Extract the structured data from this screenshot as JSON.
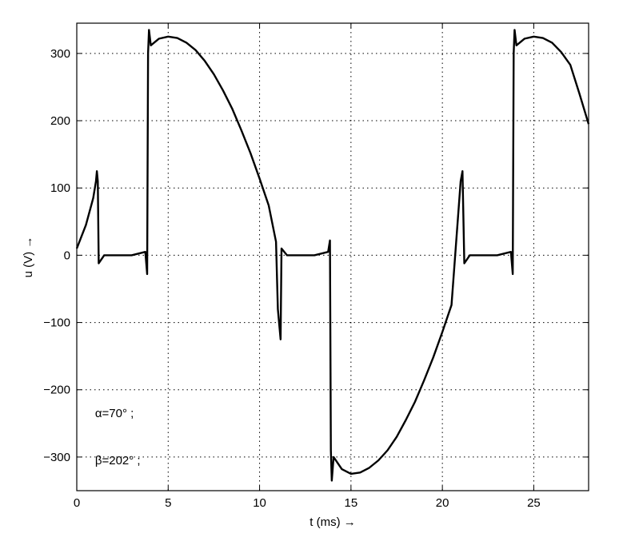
{
  "chart_data": {
    "type": "line",
    "xlabel": "t (ms) →",
    "ylabel": "u  (V) →",
    "xlim": [
      0,
      28
    ],
    "ylim": [
      -350,
      345
    ],
    "grid": true,
    "x_ticks": [
      0,
      5,
      10,
      15,
      20,
      25
    ],
    "y_ticks": [
      -300,
      -200,
      -100,
      0,
      100,
      200,
      300
    ],
    "x_tick_labels": [
      "0",
      "5",
      "10",
      "15",
      "20",
      "25"
    ],
    "y_tick_labels": [
      "−300",
      "−200",
      "−100",
      "0",
      "100",
      "200",
      "300"
    ],
    "annotations": [
      {
        "text": "α=70° ;",
        "x": 1.0,
        "y": -235
      },
      {
        "text": "β=202° ;",
        "x": 1.0,
        "y": -305
      }
    ],
    "series": [
      {
        "color": "#000000",
        "points": [
          [
            0,
            10
          ],
          [
            0.5,
            45
          ],
          [
            0.9,
            85
          ],
          [
            1.05,
            110
          ],
          [
            1.1,
            125
          ],
          [
            1.15,
            110
          ],
          [
            1.2,
            -12
          ],
          [
            1.5,
            0
          ],
          [
            3.0,
            0
          ],
          [
            3.75,
            5
          ],
          [
            3.85,
            -28
          ],
          [
            3.9,
            300
          ],
          [
            3.95,
            335
          ],
          [
            4.05,
            312
          ],
          [
            4.5,
            322
          ],
          [
            5,
            325
          ],
          [
            5.5,
            323
          ],
          [
            6,
            316
          ],
          [
            6.5,
            305
          ],
          [
            7,
            289
          ],
          [
            7.5,
            269
          ],
          [
            8,
            245
          ],
          [
            8.5,
            218
          ],
          [
            9,
            186
          ],
          [
            9.5,
            152
          ],
          [
            10,
            114
          ],
          [
            10.5,
            74
          ],
          [
            10.9,
            20
          ],
          [
            11.0,
            -80
          ],
          [
            11.1,
            -110
          ],
          [
            11.15,
            -125
          ],
          [
            11.2,
            10
          ],
          [
            11.5,
            0
          ],
          [
            13.0,
            0
          ],
          [
            13.75,
            5
          ],
          [
            13.85,
            22
          ],
          [
            13.9,
            -290
          ],
          [
            13.95,
            -335
          ],
          [
            14.05,
            -300
          ],
          [
            14.5,
            -318
          ],
          [
            15,
            -325
          ],
          [
            15.5,
            -323
          ],
          [
            16,
            -316
          ],
          [
            16.5,
            -305
          ],
          [
            17,
            -290
          ],
          [
            17.5,
            -270
          ],
          [
            18,
            -245
          ],
          [
            18.5,
            -218
          ],
          [
            19,
            -186
          ],
          [
            19.5,
            -152
          ],
          [
            20,
            -114
          ],
          [
            20.5,
            -74
          ],
          [
            21.0,
            110
          ],
          [
            21.1,
            125
          ],
          [
            21.2,
            -12
          ],
          [
            21.5,
            0
          ],
          [
            23.0,
            0
          ],
          [
            23.75,
            5
          ],
          [
            23.85,
            -28
          ],
          [
            23.9,
            300
          ],
          [
            23.95,
            335
          ],
          [
            24.05,
            312
          ],
          [
            24.5,
            322
          ],
          [
            25,
            325
          ],
          [
            25.5,
            323
          ],
          [
            26,
            316
          ],
          [
            26.5,
            302
          ],
          [
            27,
            283
          ],
          [
            27.5,
            240
          ],
          [
            28,
            195
          ]
        ]
      }
    ]
  }
}
